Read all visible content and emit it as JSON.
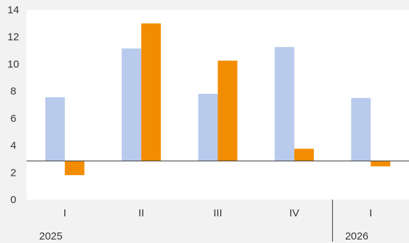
{
  "chart_data": {
    "type": "bar",
    "categories": [
      "I",
      "II",
      "III",
      "IV",
      "I"
    ],
    "groups": [
      {
        "label": "2025",
        "start": 0,
        "end": 3
      },
      {
        "label": "2026",
        "start": 4,
        "end": 4
      }
    ],
    "baseline": 2.85,
    "series": [
      {
        "color": "#b9cbec",
        "values": [
          7.55,
          11.15,
          7.8,
          11.25,
          7.5
        ]
      },
      {
        "color": "#f28c00",
        "values": [
          1.8,
          13.0,
          10.25,
          3.75,
          2.45
        ]
      }
    ],
    "yticks": [
      0,
      2,
      4,
      6,
      8,
      10,
      12,
      14
    ],
    "ylim": [
      0,
      14
    ],
    "title": "",
    "xlabel": "",
    "ylabel": "",
    "grid": false,
    "plot_background": "#ffffff",
    "page_background": "#f2f2f2",
    "axis_color": "#333333"
  }
}
